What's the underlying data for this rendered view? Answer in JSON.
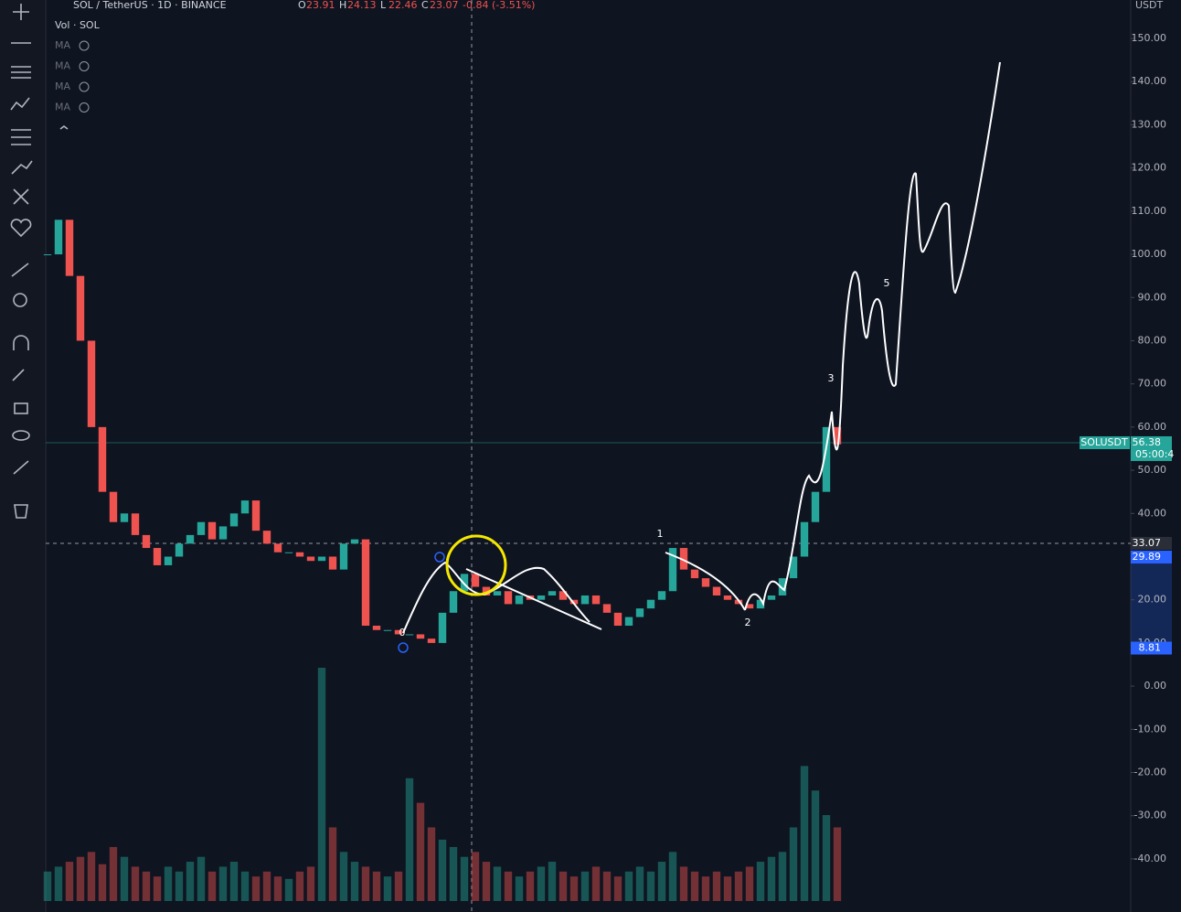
{
  "header": {
    "symbol": "SOL / TetherUS · 1D · BINANCE",
    "ohlc": [
      {
        "label": "O",
        "value": "23.91"
      },
      {
        "label": "H",
        "value": "24.13"
      },
      {
        "label": "L",
        "value": "22.46"
      },
      {
        "label": "C",
        "value": "23.07"
      }
    ],
    "change": "-0.84 (-3.51%)",
    "volume_legend": "Vol · SOL",
    "indicators": [
      "MA",
      "MA",
      "MA",
      "MA"
    ],
    "currency": "USDT"
  },
  "chart_data": {
    "type": "candle",
    "values": [
      100,
      108,
      95,
      80,
      60,
      45,
      38,
      40,
      35,
      32,
      28,
      30,
      33,
      35,
      38,
      34,
      37,
      40,
      43,
      36,
      33,
      31,
      31,
      30,
      29,
      30,
      27,
      33,
      34,
      14,
      13,
      13,
      12,
      12,
      11,
      10,
      17,
      22,
      26,
      23,
      21,
      22,
      19,
      21,
      20,
      21,
      22,
      20,
      19,
      21,
      19,
      17,
      14,
      16,
      18,
      20,
      22,
      32,
      27,
      25,
      23,
      21,
      20,
      19,
      18,
      20,
      21,
      25,
      30,
      38,
      45,
      60,
      56
    ],
    "volumes": [
      12,
      14,
      16,
      18,
      20,
      15,
      22,
      18,
      14,
      12,
      10,
      14,
      12,
      16,
      18,
      12,
      14,
      16,
      12,
      10,
      12,
      10,
      9,
      12,
      14,
      95,
      30,
      20,
      16,
      14,
      12,
      10,
      12,
      50,
      40,
      30,
      25,
      22,
      18,
      20,
      16,
      14,
      12,
      10,
      12,
      14,
      16,
      12,
      10,
      12,
      14,
      12,
      10,
      12,
      14,
      12,
      16,
      20,
      14,
      12,
      10,
      12,
      10,
      12,
      14,
      16,
      18,
      20,
      30,
      55,
      45,
      35,
      30
    ],
    "up_color": "#26a69a",
    "down_color": "#ef5350",
    "ylim": [
      -52.3,
      158.9
    ],
    "yticks": [
      {
        "value": 150,
        "label": "150.00"
      },
      {
        "value": 140,
        "label": "140.00"
      },
      {
        "value": 130,
        "label": "130.00"
      },
      {
        "value": 120,
        "label": "120.00"
      },
      {
        "value": 110,
        "label": "110.00"
      },
      {
        "value": 100,
        "label": "100.00"
      },
      {
        "value": 90,
        "label": "90.00"
      },
      {
        "value": 80,
        "label": "80.00"
      },
      {
        "value": 70,
        "label": "70.00"
      },
      {
        "value": 60,
        "label": "60.00"
      },
      {
        "value": 50,
        "label": "50.00"
      },
      {
        "value": 40,
        "label": "40.00"
      },
      {
        "value": 30,
        "label": "30.00"
      },
      {
        "value": 20,
        "label": "20.00"
      },
      {
        "value": 10,
        "label": "10.00"
      },
      {
        "value": 0,
        "label": "0.00"
      },
      {
        "value": -10,
        "label": "-10.00"
      },
      {
        "value": -20,
        "label": "-20.00"
      },
      {
        "value": -30,
        "label": "-30.00"
      },
      {
        "value": -40,
        "label": "-40.00"
      }
    ],
    "price_markers": [
      {
        "value": 56.38,
        "label": "56.38",
        "color": "#26a69a"
      },
      {
        "value": 33.07,
        "label": "33.07",
        "color": "#2a2e39"
      },
      {
        "value": 29.89,
        "label": "29.89",
        "color": "#2962ff"
      },
      {
        "value": 8.81,
        "label": "8.81",
        "color": "#2962ff"
      }
    ],
    "symbol_tag": "SOLUSDT",
    "countdown": "05:00:4",
    "wave_labels": [
      "0",
      "1",
      "2",
      "3",
      "5"
    ]
  }
}
